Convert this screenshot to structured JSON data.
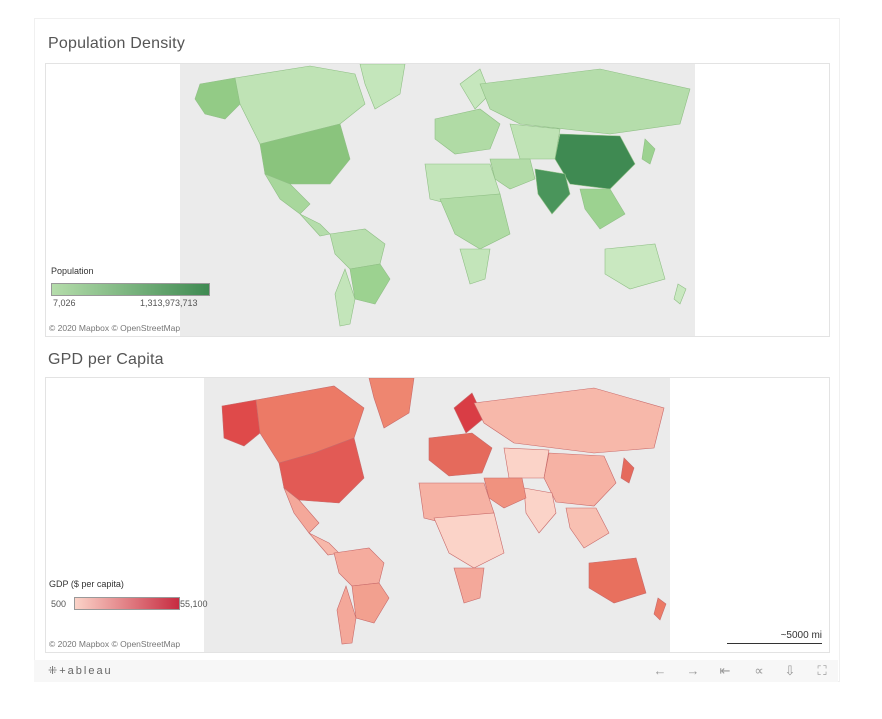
{
  "population_map": {
    "title": "Population Density",
    "legend_title": "Population",
    "legend_min": "7,026",
    "legend_max": "1,313,973,713",
    "color_low": "#b5ddab",
    "color_high": "#3f8a52",
    "attribution": "© 2020 Mapbox © OpenStreetMap"
  },
  "gdp_map": {
    "title": "GPD per Capita",
    "legend_title": "GDP ($ per capita)",
    "legend_min": "500",
    "legend_max": "55,100",
    "color_low": "#fbd3c8",
    "color_high": "#c72c41",
    "attribution": "© 2020 Mapbox © OpenStreetMap",
    "scale_label": "~5000 mi"
  },
  "toolbar": {
    "logo": "⁜+ableau",
    "icons": [
      "undo-icon",
      "redo-icon",
      "revert-icon",
      "share-icon",
      "download-icon",
      "fullscreen-icon"
    ]
  }
}
